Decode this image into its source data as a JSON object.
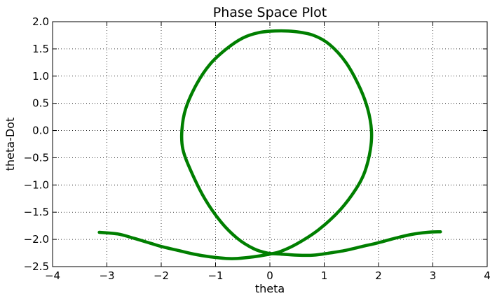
{
  "chart_data": {
    "type": "line",
    "title": "Phase Space Plot",
    "xlabel": "theta",
    "ylabel": "theta-Dot",
    "xlim": [
      -4,
      4
    ],
    "ylim": [
      -2.5,
      2.0
    ],
    "xticks": [
      -4,
      -3,
      -2,
      -1,
      0,
      1,
      2,
      3,
      4
    ],
    "xtick_labels": [
      "−4",
      "−3",
      "−2",
      "−1",
      "0",
      "1",
      "2",
      "3",
      "4"
    ],
    "yticks": [
      -2.5,
      -2.0,
      -1.5,
      -1.0,
      -0.5,
      0.0,
      0.5,
      1.0,
      1.5,
      2.0
    ],
    "ytick_labels": [
      "−2.5",
      "−2.0",
      "−1.5",
      "−1.0",
      "−0.5",
      "0.0",
      "0.5",
      "1.0",
      "1.5",
      "2.0"
    ],
    "grid": true,
    "series": [
      {
        "color": "#007f00",
        "x": [
          -3.14,
          -2.8,
          -2.5,
          -2.2,
          -2.0,
          -1.7,
          -1.4,
          -1.1,
          -0.8,
          -0.6,
          -0.3,
          0.0,
          0.2,
          0.5,
          0.9,
          1.3,
          1.6,
          1.75,
          1.85,
          1.87,
          1.8,
          1.65,
          1.4,
          1.1,
          0.8,
          0.45,
          0.1,
          -0.2,
          -0.5,
          -0.8,
          -1.1,
          -1.35,
          -1.55,
          -1.62,
          -1.6,
          -1.45,
          -1.2,
          -0.9,
          -0.6,
          -0.3,
          -0.05,
          0.2,
          0.5,
          0.8,
          1.1,
          1.4,
          1.7,
          2.0,
          2.3,
          2.6,
          2.9,
          3.14
        ],
        "y": [
          -1.87,
          -1.9,
          -1.98,
          -2.07,
          -2.13,
          -2.2,
          -2.27,
          -2.32,
          -2.35,
          -2.35,
          -2.32,
          -2.27,
          -2.22,
          -2.08,
          -1.82,
          -1.45,
          -1.05,
          -0.75,
          -0.35,
          0.0,
          0.4,
          0.8,
          1.25,
          1.58,
          1.75,
          1.82,
          1.83,
          1.8,
          1.7,
          1.5,
          1.22,
          0.85,
          0.4,
          0.0,
          -0.35,
          -0.75,
          -1.25,
          -1.68,
          -1.98,
          -2.17,
          -2.25,
          -2.27,
          -2.29,
          -2.29,
          -2.25,
          -2.2,
          -2.13,
          -2.06,
          -1.98,
          -1.91,
          -1.87,
          -1.86
        ]
      }
    ]
  }
}
